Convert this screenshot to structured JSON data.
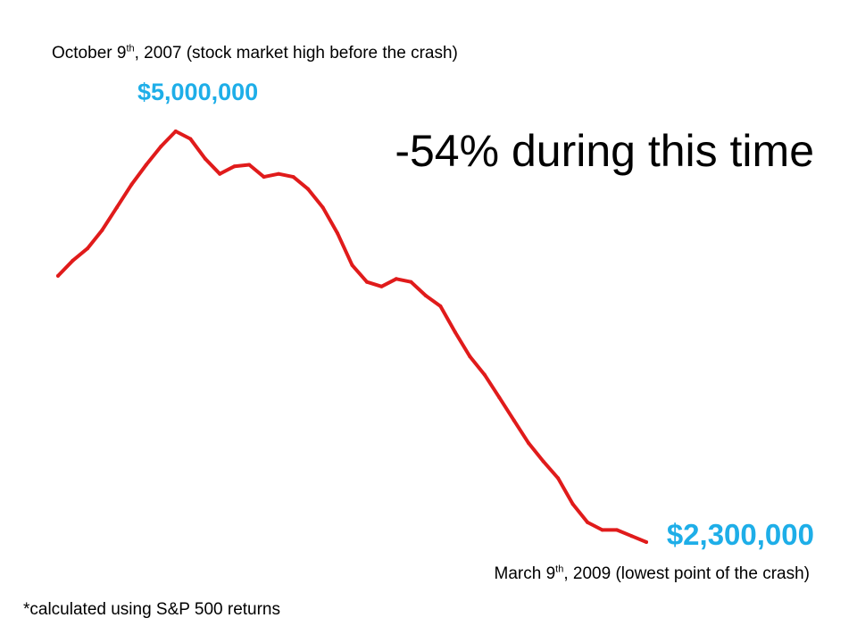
{
  "headline": "-54% during this time",
  "start_note": {
    "prefix": "October 9",
    "sup": "th",
    "suffix": ", 2007 (stock market high before the crash)"
  },
  "end_note": {
    "prefix": "March 9",
    "sup": "th",
    "suffix": ", 2009 (lowest point of the crash)"
  },
  "footnote": "*calculated using S&P 500 returns",
  "colors": {
    "line": "#e01b1b",
    "value_label": "#1eaee8"
  },
  "chart_data": {
    "type": "line",
    "title": "",
    "xlabel": "",
    "ylabel": "",
    "grid": false,
    "x_start_label": "October 9th, 2007",
    "x_end_label": "March 9th, 2009",
    "start_value_label": "$5,000,000",
    "end_value_label": "$2,300,000",
    "ylim": [
      2300000,
      5000000
    ],
    "series": [
      {
        "name": "",
        "values": [
          4050000,
          4150000,
          4230000,
          4350000,
          4500000,
          4650000,
          4780000,
          4900000,
          5000000,
          4950000,
          4820000,
          4720000,
          4770000,
          4780000,
          4700000,
          4720000,
          4700000,
          4620000,
          4500000,
          4330000,
          4120000,
          4010000,
          3980000,
          4030000,
          4010000,
          3920000,
          3850000,
          3680000,
          3520000,
          3400000,
          3250000,
          3100000,
          2950000,
          2830000,
          2720000,
          2550000,
          2430000,
          2380000,
          2380000,
          2340000,
          2300000
        ]
      }
    ]
  }
}
